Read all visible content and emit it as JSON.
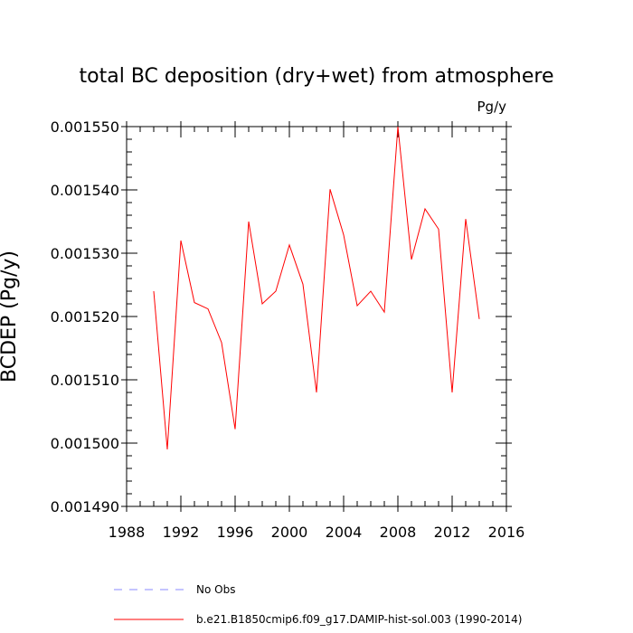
{
  "chart_data": {
    "type": "line",
    "title": "total BC deposition (dry+wet) from atmosphere",
    "units": "Pg/y",
    "ylabel": "BCDEP  (Pg/y)",
    "xlabel": "",
    "xlim": [
      1988,
      2016
    ],
    "ylim": [
      0.00149,
      0.00155
    ],
    "x_ticks": [
      1988,
      1992,
      1996,
      2000,
      2004,
      2008,
      2012,
      2016
    ],
    "x_tick_labels": [
      "1988",
      "1992",
      "1996",
      "2000",
      "2004",
      "2008",
      "2012",
      "2016"
    ],
    "y_ticks": [
      0.00149,
      0.0015,
      0.00151,
      0.00152,
      0.00153,
      0.00154,
      0.00155
    ],
    "y_tick_labels": [
      "0.001490",
      "0.001500",
      "0.001510",
      "0.001520",
      "0.001530",
      "0.001540",
      "0.001550"
    ],
    "grid": false,
    "legend_position": "bottom",
    "series": [
      {
        "name": "b.e21.B1850cmip6.f09_g17.DAMIP-hist-sol.003 (1990-2014)",
        "color": "#ff0000",
        "style": "solid",
        "x": [
          1990,
          1991,
          1992,
          1993,
          1994,
          1995,
          1996,
          1997,
          1998,
          1999,
          2000,
          2001,
          2002,
          2003,
          2004,
          2005,
          2006,
          2007,
          2008,
          2009,
          2010,
          2011,
          2012,
          2013,
          2014
        ],
        "y": [
          0.001524,
          0.001499,
          0.001532,
          0.0015222,
          0.0015212,
          0.0015159,
          0.0015022,
          0.001535,
          0.001522,
          0.001524,
          0.0015313,
          0.0015251,
          0.001508,
          0.0015401,
          0.0015329,
          0.0015217,
          0.001524,
          0.0015207,
          0.00155,
          0.001529,
          0.001537,
          0.0015338,
          0.001508,
          0.0015354,
          0.0015196
        ]
      }
    ],
    "legend": [
      {
        "label": "No Obs",
        "color": "#8888ff",
        "style": "dashed"
      },
      {
        "label": "b.e21.B1850cmip6.f09_g17.DAMIP-hist-sol.003 (1990-2014)",
        "color": "#ff0000",
        "style": "solid"
      }
    ]
  }
}
